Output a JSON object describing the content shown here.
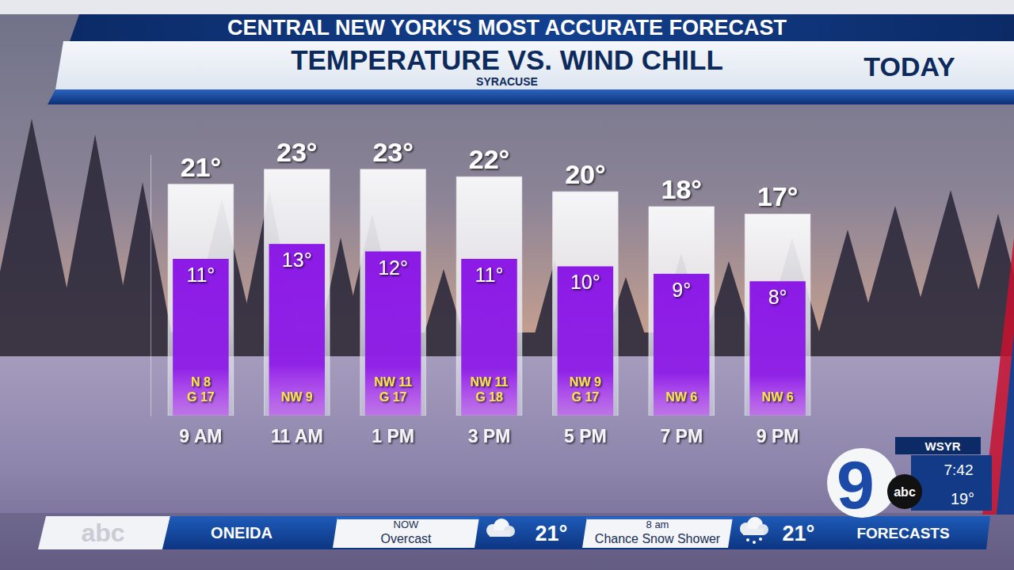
{
  "chart_data": {
    "type": "bar",
    "header": "CENTRAL NEW YORK'S MOST ACCURATE FORECAST",
    "title": "TEMPERATURE VS. WIND CHILL",
    "subtitle": "SYRACUSE",
    "period": "TODAY",
    "categories": [
      "9 AM",
      "11 AM",
      "1 PM",
      "3 PM",
      "5 PM",
      "7 PM",
      "9 PM"
    ],
    "series": [
      {
        "color": "#eef0f5",
        "values": [
          21,
          23,
          23,
          22,
          20,
          18,
          17
        ],
        "value_labels": [
          "21°",
          "23°",
          "23°",
          "22°",
          "20°",
          "18°",
          "17°"
        ]
      },
      {
        "color": "#8c1ae6",
        "values": [
          11,
          13,
          12,
          11,
          10,
          9,
          8
        ],
        "value_labels": [
          "11°",
          "13°",
          "12°",
          "11°",
          "10°",
          "9°",
          "8°"
        ]
      }
    ],
    "wind": [
      [
        "N 8",
        "G 17"
      ],
      [
        "NW 9"
      ],
      [
        "NW 11",
        "G 17"
      ],
      [
        "NW 11",
        "G 18"
      ],
      [
        "NW 9",
        "G 17"
      ],
      [
        "NW 6"
      ],
      [
        "NW 6"
      ]
    ],
    "ylim": [
      -10,
      25
    ],
    "tick_labels": "x",
    "data_labels": true,
    "grid": false
  },
  "ticker": {
    "network": "abc",
    "city": "ONEIDA",
    "now_label": "NOW",
    "now_condition": "Overcast",
    "now_temp": "21°",
    "next_label": "8 am",
    "next_condition": "Chance Snow Shower",
    "next_temp": "21°",
    "section": "FORECASTS"
  },
  "station": {
    "channel": "9",
    "network": "abc",
    "call_sign": "WSYR",
    "time": "7:42",
    "temperature": "19°"
  }
}
